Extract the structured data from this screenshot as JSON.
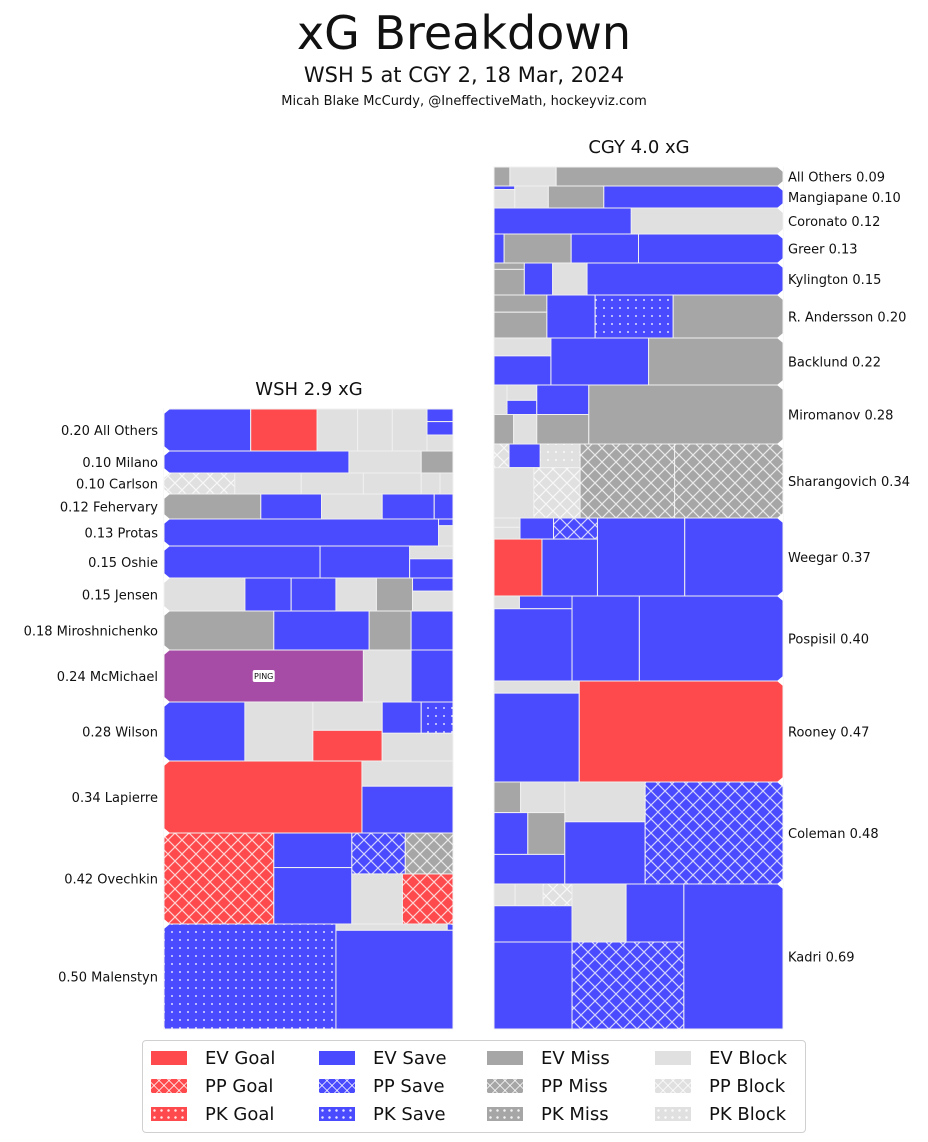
{
  "header": {
    "title": "xG Breakdown",
    "subtitle": "WSH 5 at CGY 2, 18 Mar, 2024",
    "credit": "Micah Blake McCurdy, @IneffectiveMath, hockeyviz.com"
  },
  "colors": {
    "goal": "#ff4a4d",
    "save": "#4a4aff",
    "miss": "#a6a6a6",
    "block": "#e0e0e0",
    "highlight": "#a64ca6",
    "separator": "#f0f0f0"
  },
  "chart_data": {
    "type": "treemap",
    "title": "xG Breakdown",
    "teams": [
      {
        "name": "WSH",
        "title": "WSH 2.9 xG",
        "total_xg": 2.9,
        "label_side": "left",
        "players": [
          {
            "name": "All Others",
            "xg": 0.2,
            "label": "0.20 All Others"
          },
          {
            "name": "Milano",
            "xg": 0.1,
            "label": "0.10 Milano"
          },
          {
            "name": "Carlson",
            "xg": 0.1,
            "label": "0.10 Carlson"
          },
          {
            "name": "Fehervary",
            "xg": 0.12,
            "label": "0.12 Fehervary"
          },
          {
            "name": "Protas",
            "xg": 0.13,
            "label": "0.13 Protas"
          },
          {
            "name": "Oshie",
            "xg": 0.15,
            "label": "0.15 Oshie"
          },
          {
            "name": "Jensen",
            "xg": 0.15,
            "label": "0.15 Jensen"
          },
          {
            "name": "Miroshnichenko",
            "xg": 0.18,
            "label": "0.18 Miroshnichenko"
          },
          {
            "name": "McMichael",
            "xg": 0.24,
            "label": "0.24 McMichael",
            "annotation": "PING"
          },
          {
            "name": "Wilson",
            "xg": 0.28,
            "label": "0.28 Wilson"
          },
          {
            "name": "Lapierre",
            "xg": 0.34,
            "label": "0.34 Lapierre"
          },
          {
            "name": "Ovechkin",
            "xg": 0.42,
            "label": "0.42 Ovechkin"
          },
          {
            "name": "Malenstyn",
            "xg": 0.5,
            "label": "0.50 Malenstyn"
          }
        ]
      },
      {
        "name": "CGY",
        "title": "CGY 4.0 xG",
        "total_xg": 4.0,
        "label_side": "right",
        "players": [
          {
            "name": "All Others",
            "xg": 0.09,
            "label": "All Others 0.09"
          },
          {
            "name": "Mangiapane",
            "xg": 0.1,
            "label": "Mangiapane 0.10"
          },
          {
            "name": "Coronato",
            "xg": 0.12,
            "label": "Coronato 0.12"
          },
          {
            "name": "Greer",
            "xg": 0.13,
            "label": "Greer 0.13"
          },
          {
            "name": "Kylington",
            "xg": 0.15,
            "label": "Kylington 0.15"
          },
          {
            "name": "R. Andersson",
            "xg": 0.2,
            "label": "R. Andersson 0.20"
          },
          {
            "name": "Backlund",
            "xg": 0.22,
            "label": "Backlund 0.22"
          },
          {
            "name": "Miromanov",
            "xg": 0.28,
            "label": "Miromanov 0.28"
          },
          {
            "name": "Sharangovich",
            "xg": 0.34,
            "label": "Sharangovich 0.34"
          },
          {
            "name": "Weegar",
            "xg": 0.37,
            "label": "Weegar 0.37"
          },
          {
            "name": "Pospisil",
            "xg": 0.4,
            "label": "Pospisil 0.40"
          },
          {
            "name": "Rooney",
            "xg": 0.47,
            "label": "Rooney 0.47"
          },
          {
            "name": "Coleman",
            "xg": 0.48,
            "label": "Coleman 0.48"
          },
          {
            "name": "Kadri",
            "xg": 0.69,
            "label": "Kadri 0.69"
          }
        ]
      }
    ],
    "legend": [
      {
        "label": "EV Goal",
        "result": "goal",
        "strength": "EV"
      },
      {
        "label": "PP Goal",
        "result": "goal",
        "strength": "PP"
      },
      {
        "label": "PK Goal",
        "result": "goal",
        "strength": "PK"
      },
      {
        "label": "EV Save",
        "result": "save",
        "strength": "EV"
      },
      {
        "label": "PP Save",
        "result": "save",
        "strength": "PP"
      },
      {
        "label": "PK Save",
        "result": "save",
        "strength": "PK"
      },
      {
        "label": "EV Miss",
        "result": "miss",
        "strength": "EV"
      },
      {
        "label": "PP Miss",
        "result": "miss",
        "strength": "PP"
      },
      {
        "label": "PK Miss",
        "result": "miss",
        "strength": "PK"
      },
      {
        "label": "EV Block",
        "result": "block",
        "strength": "EV"
      },
      {
        "label": "PP Block",
        "result": "block",
        "strength": "PP"
      },
      {
        "label": "PK Block",
        "result": "block",
        "strength": "PK"
      }
    ],
    "legend_placement": "bottom"
  }
}
